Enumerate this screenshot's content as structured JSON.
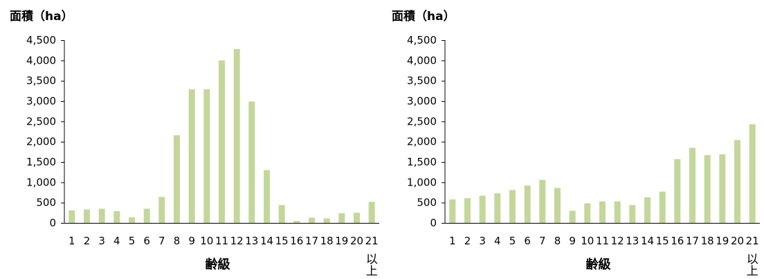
{
  "chart_data": [
    {
      "type": "bar",
      "ylabel": "面積（ha）",
      "xlabel": "齢級",
      "last_category_suffix": "以上",
      "categories": [
        "1",
        "2",
        "3",
        "4",
        "5",
        "6",
        "7",
        "8",
        "9",
        "10",
        "11",
        "12",
        "13",
        "14",
        "15",
        "16",
        "17",
        "18",
        "19",
        "20",
        "21"
      ],
      "values": [
        310,
        330,
        350,
        290,
        140,
        350,
        640,
        2160,
        3290,
        3290,
        4000,
        4280,
        2990,
        1300,
        440,
        50,
        130,
        110,
        240,
        250,
        520
      ],
      "yticks": [
        "0",
        "500",
        "1,000",
        "1,500",
        "2,000",
        "2,500",
        "3,000",
        "3,500",
        "4,000",
        "4,500"
      ],
      "ylim": [
        0,
        4500
      ],
      "bar_color": "#c4d79b",
      "grid": false
    },
    {
      "type": "bar",
      "ylabel": "面積（ha）",
      "xlabel": "齢級",
      "last_category_suffix": "以上",
      "categories": [
        "1",
        "2",
        "3",
        "4",
        "5",
        "6",
        "7",
        "8",
        "9",
        "10",
        "11",
        "12",
        "13",
        "14",
        "15",
        "16",
        "17",
        "18",
        "19",
        "20",
        "21"
      ],
      "values": [
        580,
        610,
        670,
        730,
        810,
        920,
        1060,
        860,
        300,
        480,
        530,
        530,
        440,
        630,
        770,
        1570,
        1850,
        1670,
        1690,
        2040,
        2430
      ],
      "yticks": [
        "0",
        "500",
        "1,000",
        "1,500",
        "2,000",
        "2,500",
        "3,000",
        "3,500",
        "4,000",
        "4,500"
      ],
      "ylim": [
        0,
        4500
      ],
      "bar_color": "#c4d79b",
      "grid": false
    }
  ]
}
